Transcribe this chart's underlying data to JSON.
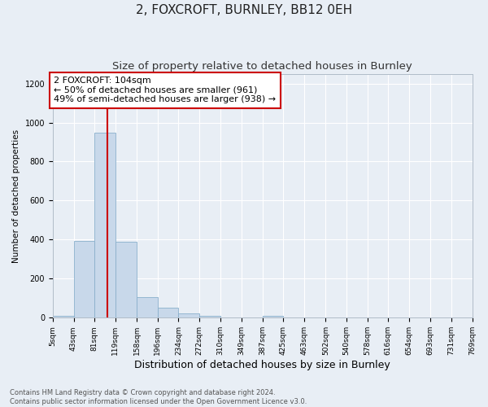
{
  "title": "2, FOXCROFT, BURNLEY, BB12 0EH",
  "subtitle": "Size of property relative to detached houses in Burnley",
  "xlabel": "Distribution of detached houses by size in Burnley",
  "ylabel": "Number of detached properties",
  "bar_color": "#c8d8ea",
  "bar_edgecolor": "#8ab0cc",
  "background_color": "#e8eef5",
  "plot_bg_color": "#e8eef5",
  "annotation_line1": "2 FOXCROFT: 104sqm",
  "annotation_line2": "← 50% of detached houses are smaller (961)",
  "annotation_line3": "49% of semi-detached houses are larger (938) →",
  "annotation_box_edgecolor": "#cc0000",
  "annotation_box_facecolor": "#ffffff",
  "red_line_x": 104,
  "red_line_color": "#cc0000",
  "footer_line1": "Contains HM Land Registry data © Crown copyright and database right 2024.",
  "footer_line2": "Contains public sector information licensed under the Open Government Licence v3.0.",
  "ylim": [
    0,
    1250
  ],
  "bin_edges": [
    5,
    43,
    81,
    119,
    158,
    196,
    234,
    272,
    310,
    349,
    387,
    425,
    463,
    502,
    540,
    578,
    616,
    654,
    693,
    731,
    769
  ],
  "bar_heights": [
    10,
    395,
    950,
    390,
    107,
    52,
    22,
    10,
    0,
    0,
    10,
    0,
    0,
    0,
    0,
    0,
    0,
    0,
    0,
    0
  ],
  "tick_labels": [
    "5sqm",
    "43sqm",
    "81sqm",
    "119sqm",
    "158sqm",
    "196sqm",
    "234sqm",
    "272sqm",
    "310sqm",
    "349sqm",
    "387sqm",
    "425sqm",
    "463sqm",
    "502sqm",
    "540sqm",
    "578sqm",
    "616sqm",
    "654sqm",
    "693sqm",
    "731sqm",
    "769sqm"
  ],
  "ytick_values": [
    0,
    200,
    400,
    600,
    800,
    1000,
    1200
  ],
  "title_fontsize": 11,
  "subtitle_fontsize": 9.5,
  "xlabel_fontsize": 9,
  "ylabel_fontsize": 7.5,
  "tick_fontsize": 6.5,
  "annotation_fontsize": 8,
  "footer_fontsize": 6
}
